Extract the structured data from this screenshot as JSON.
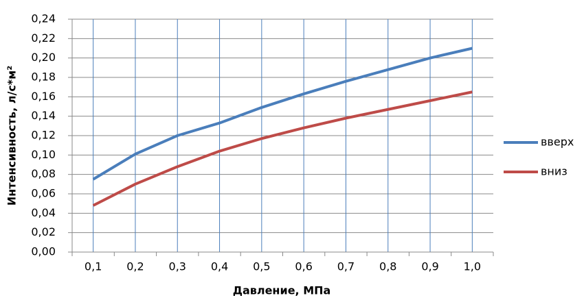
{
  "chart_data": {
    "type": "line",
    "x_label": "Давление, МПа",
    "y_label": "Интенсивность, л/с*м²",
    "categories": [
      "0,1",
      "0,2",
      "0,3",
      "0,4",
      "0,5",
      "0,6",
      "0,7",
      "0,8",
      "0,9",
      "1,0"
    ],
    "series": [
      {
        "name": "вверх",
        "color": "#4a7ebb",
        "values": [
          0.075,
          0.101,
          0.12,
          0.133,
          0.149,
          0.163,
          0.176,
          0.188,
          0.2,
          0.21
        ]
      },
      {
        "name": "вниз",
        "color": "#be4b48",
        "values": [
          0.048,
          0.07,
          0.088,
          0.104,
          0.117,
          0.128,
          0.138,
          0.147,
          0.156,
          0.165
        ]
      }
    ],
    "ylim": [
      0,
      0.24
    ],
    "yticks": [
      {
        "value": 0,
        "label": "0,00"
      },
      {
        "value": 0.02,
        "label": "0,02"
      },
      {
        "value": 0.04,
        "label": "0,04"
      },
      {
        "value": 0.06,
        "label": "0,06"
      },
      {
        "value": 0.08,
        "label": "0,08"
      },
      {
        "value": 0.1,
        "label": "0,10"
      },
      {
        "value": 0.12,
        "label": "0,12"
      },
      {
        "value": 0.14,
        "label": "0,14"
      },
      {
        "value": 0.16,
        "label": "0,16"
      },
      {
        "value": 0.18,
        "label": "0,18"
      },
      {
        "value": 0.2,
        "label": "0,20"
      },
      {
        "value": 0.22,
        "label": "0,22"
      },
      {
        "value": 0.24,
        "label": "0,24"
      }
    ],
    "grid": true,
    "legend": "right"
  }
}
